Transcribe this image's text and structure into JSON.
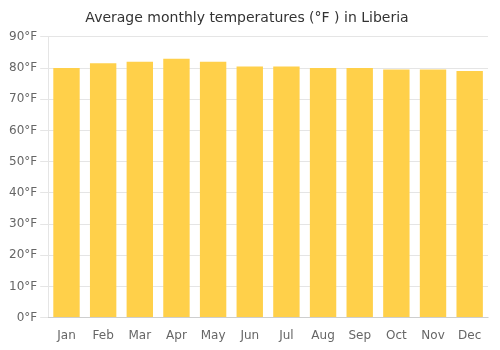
{
  "chart_data": {
    "type": "bar",
    "title": "Average monthly temperatures (°F ) in Liberia",
    "categories": [
      "Jan",
      "Feb",
      "Mar",
      "Apr",
      "May",
      "Jun",
      "Jul",
      "Aug",
      "Sep",
      "Oct",
      "Nov",
      "Dec"
    ],
    "values": [
      80,
      81.5,
      82,
      83,
      82,
      80.5,
      80.5,
      80,
      80,
      79.5,
      79.5,
      79
    ],
    "color": "#FFD04A",
    "ylim": [
      0,
      90
    ],
    "yticks": [
      {
        "value": 0,
        "label": "0°F"
      },
      {
        "value": 10,
        "label": "10°F"
      },
      {
        "value": 20,
        "label": "20°F"
      },
      {
        "value": 30,
        "label": "30°F"
      },
      {
        "value": 40,
        "label": "40°F"
      },
      {
        "value": 50,
        "label": "50°F"
      },
      {
        "value": 60,
        "label": "60°F"
      },
      {
        "value": 70,
        "label": "70°F"
      },
      {
        "value": 80,
        "label": "80°F"
      },
      {
        "value": 90,
        "label": "90°F"
      }
    ],
    "grid": true
  }
}
